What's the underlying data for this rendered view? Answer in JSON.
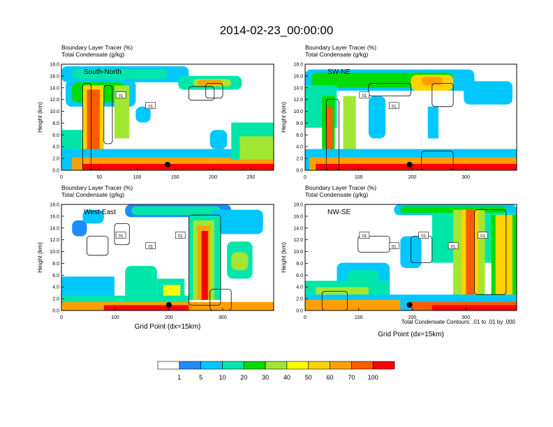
{
  "title": "2014-02-23_00:00:00",
  "colors": {
    "bins": [
      "#ffffff",
      "#1e8cff",
      "#00c8ff",
      "#00e6aa",
      "#00dc00",
      "#a0e632",
      "#ffff00",
      "#ffd200",
      "#ffa000",
      "#ff5a00",
      "#ff0000"
    ],
    "contour": "#000000",
    "frame": "#000000"
  },
  "colorbar": {
    "labels": [
      "1",
      "5",
      "10",
      "20",
      "30",
      "40",
      "50",
      "60",
      "70",
      "100"
    ]
  },
  "footnote": "Total Condensate Contours: .01 to .01 by .000",
  "chart_data": [
    {
      "type": "heatmap",
      "title_lines": [
        "Boundary Layer Tracer   (%)",
        "Total Condensate   (g/kg)"
      ],
      "panel_label": "South-North",
      "ylabel": "Height (km)",
      "xlabel": "",
      "xlim": [
        0,
        280
      ],
      "ylim": [
        0,
        18
      ],
      "xticks": [
        "0",
        "50",
        "100",
        "150",
        "200",
        "250"
      ],
      "yticks": [
        "0.0",
        "2.0",
        "4.0",
        "6.0",
        "8.0",
        "10.0",
        "12.0",
        "14.0",
        "16.0",
        "18.0"
      ],
      "contour_labels": [
        "01",
        "01"
      ],
      "station_marker_x": 140
    },
    {
      "type": "heatmap",
      "title_lines": [
        "Boundary Layer Tracer   (%)",
        "Total Condensate   (g/kg)"
      ],
      "panel_label": "SW-NE",
      "ylabel": "Height (km)",
      "xlabel": "",
      "xlim": [
        0,
        395
      ],
      "ylim": [
        0,
        18
      ],
      "xticks": [
        "0",
        "100",
        "200",
        "300"
      ],
      "yticks": [
        "0.0",
        "2.0",
        "4.0",
        "6.0",
        "8.0",
        "10.0",
        "12.0",
        "14.0",
        "16.0",
        "18.0"
      ],
      "contour_labels": [
        "01",
        "01"
      ],
      "station_marker_x": 195
    },
    {
      "type": "heatmap",
      "title_lines": [
        "Boundary Layer Tracer   (%)",
        "Total Condensate   (g/kg)"
      ],
      "panel_label": "West-East",
      "ylabel": "Height (km)",
      "xlabel": "Grid Point (dx=15km)",
      "xlim": [
        0,
        395
      ],
      "ylim": [
        0,
        18
      ],
      "xticks": [
        "0",
        "100",
        "200",
        "300"
      ],
      "yticks": [
        "0.0",
        "2.0",
        "4.0",
        "6.0",
        "8.0",
        "10.0",
        "12.0",
        "14.0",
        "16.0",
        "18.0"
      ],
      "contour_labels": [
        "01",
        "01",
        "01"
      ],
      "station_marker_x": 200
    },
    {
      "type": "heatmap",
      "title_lines": [
        "Boundary Layer Tracer   (%)",
        "Total Condensate   (g/kg)"
      ],
      "panel_label": "NW-SE",
      "ylabel": "Height (km)",
      "xlabel": "Grid Point (dx=15km)",
      "xlim": [
        0,
        395
      ],
      "ylim": [
        0,
        18
      ],
      "xticks": [
        "0",
        "100",
        "200",
        "300"
      ],
      "yticks": [
        "0.0",
        "2.0",
        "4.0",
        "6.0",
        "8.0",
        "10.0",
        "12.0",
        "14.0",
        "16.0",
        "18.0"
      ],
      "contour_labels": [
        "01",
        "01",
        "01",
        "01",
        "01"
      ],
      "station_marker_x": 195
    }
  ]
}
